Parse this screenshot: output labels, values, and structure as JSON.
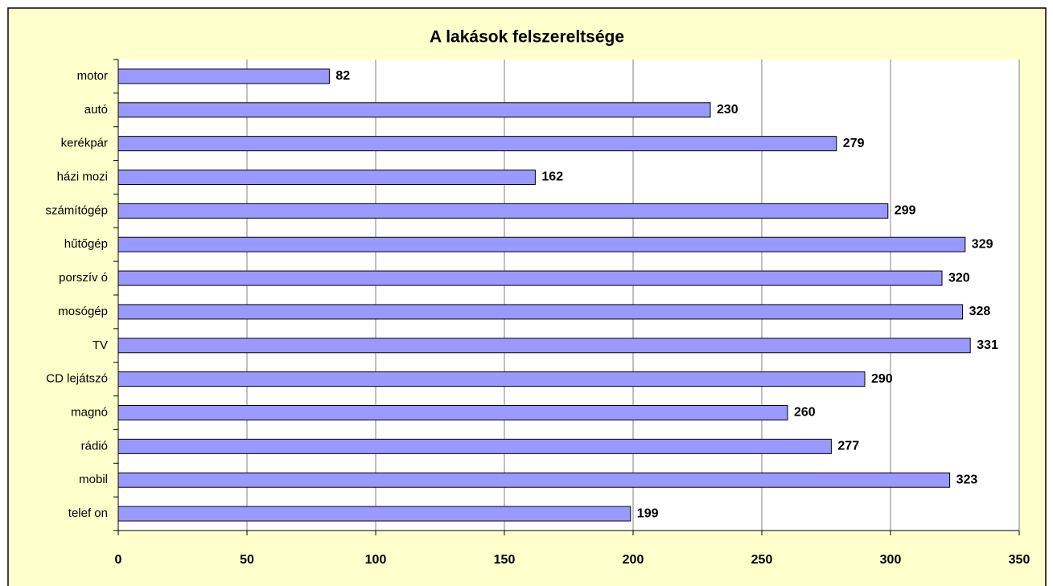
{
  "chart_data": {
    "type": "bar",
    "orientation": "horizontal",
    "title": "A lakások felszereltsége",
    "categories": [
      "motor",
      "autó",
      "kerékpár",
      "házi mozi",
      "számítógép",
      "hűtőgép",
      "porszív ó",
      "mosógép",
      "TV",
      "CD lejátszó",
      "magnó",
      "rádió",
      "mobil",
      "telef on"
    ],
    "values": [
      82,
      230,
      279,
      162,
      299,
      329,
      320,
      328,
      331,
      290,
      260,
      277,
      323,
      199
    ],
    "color": "#9999ff",
    "xlim": [
      0,
      350
    ],
    "xticks": [
      0,
      50,
      100,
      150,
      200,
      250,
      300,
      350
    ],
    "grid": true
  }
}
